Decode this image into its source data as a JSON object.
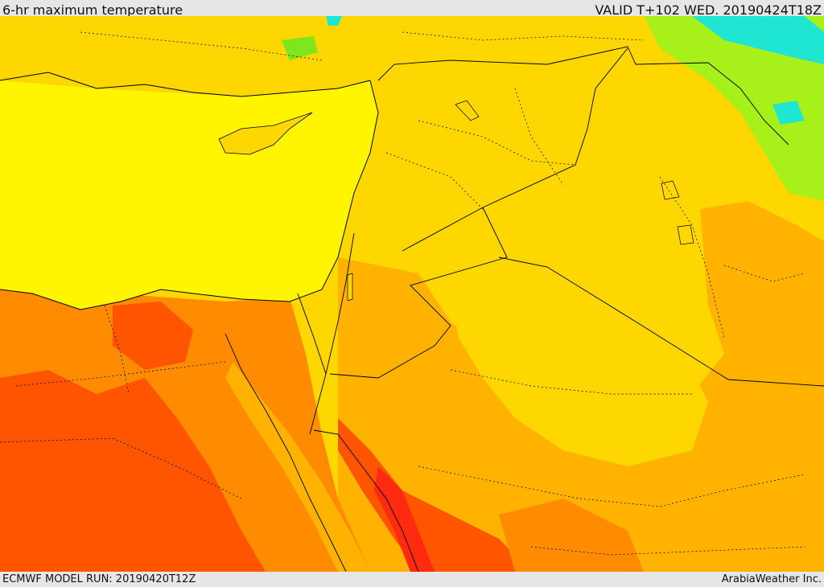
{
  "header": {
    "title": "6-hr maximum temperature",
    "valid": "VALID T+102 WED. 20190424T18Z"
  },
  "footer": {
    "model_run": "ECMWF MODEL RUN: 20190420T12Z",
    "credit": "ArabiaWeather Inc."
  },
  "colors": {
    "sea_yellow": "#fff500",
    "light_orange": "#ffd700",
    "orange": "#ffb300",
    "dark_orange": "#ff8c00",
    "red_orange": "#ff5500",
    "red": "#ff2a10",
    "green": "#7de61c",
    "cyan": "#1ee6d2",
    "border": "#000000"
  }
}
